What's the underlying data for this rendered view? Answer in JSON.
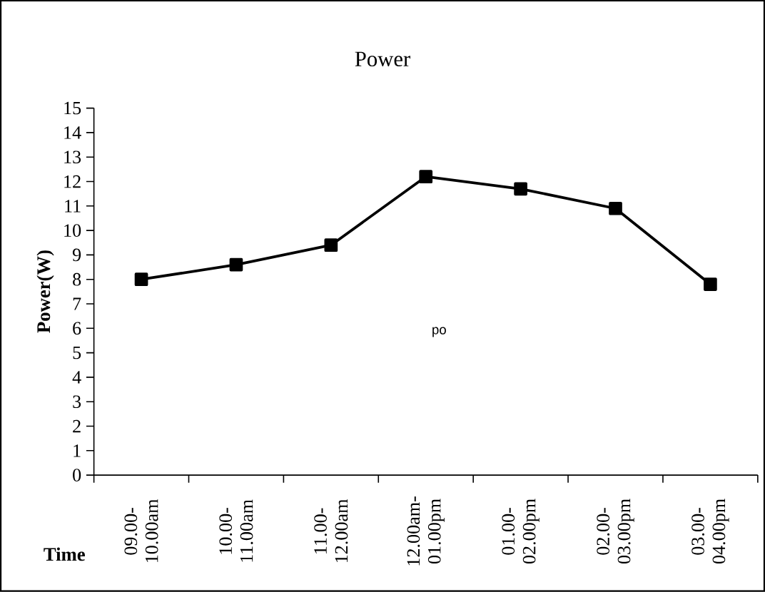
{
  "chart_data": {
    "type": "line",
    "title": "Power",
    "xlabel": "Time",
    "ylabel": "Power(W)",
    "categories": [
      "09.00-10.00am",
      "10.00-11.00am",
      "11.00-12.00am",
      "12.00am-01.00pm",
      "01.00-02.00pm",
      "02.00-03.00pm",
      "03.00-04.00pm"
    ],
    "series": [
      {
        "color": "#000000",
        "values": [
          8.0,
          8.6,
          9.4,
          12.2,
          11.7,
          10.9,
          7.8
        ]
      }
    ],
    "ylim": [
      0,
      15
    ],
    "yticks": [
      0,
      1,
      2,
      3,
      4,
      5,
      6,
      7,
      8,
      9,
      10,
      11,
      12,
      13,
      14,
      15
    ],
    "annotations": [
      "po"
    ],
    "grid": false,
    "marker": "square",
    "line_style": "solid"
  }
}
